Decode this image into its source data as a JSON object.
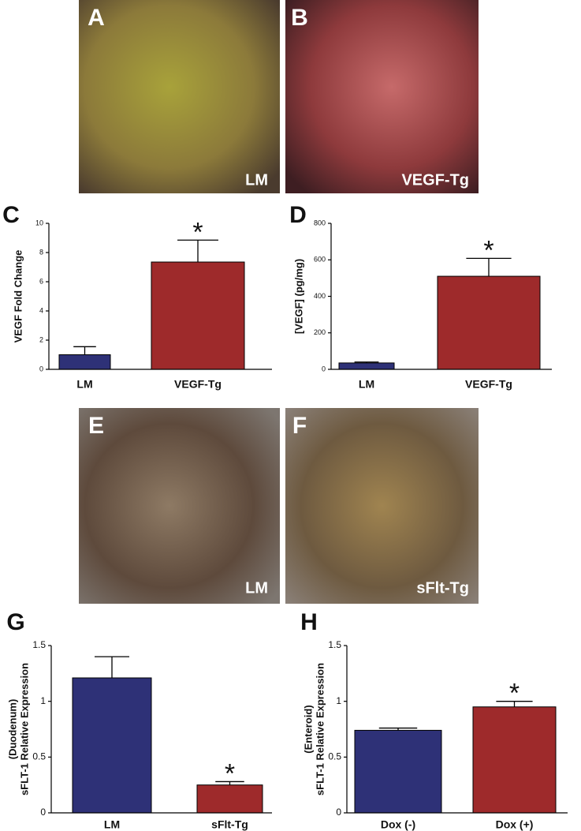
{
  "panels": [
    {
      "letter": "A",
      "label": "LM"
    },
    {
      "letter": "B",
      "label": "VEGF-Tg"
    },
    {
      "letter": "E",
      "label": "LM"
    },
    {
      "letter": "F",
      "label": "sFlt-Tg"
    }
  ],
  "chart_data": [
    {
      "type": "bar",
      "panel": "C",
      "ylabel": [
        "VEGF Fold Change"
      ],
      "categories": [
        "LM",
        "VEGF-Tg"
      ],
      "values": [
        1.0,
        7.35
      ],
      "errors": [
        0.55,
        1.5
      ],
      "colors": [
        "#2e3177",
        "#9e2a2b"
      ],
      "ylim": [
        0,
        10
      ],
      "yticks": [
        0,
        2,
        4,
        6,
        8,
        10
      ],
      "annotation": "*",
      "annotation_category": 1
    },
    {
      "type": "bar",
      "panel": "D",
      "ylabel": [
        "[VEGF] (pg/mg)"
      ],
      "categories": [
        "LM",
        "VEGF-Tg"
      ],
      "values": [
        35,
        510
      ],
      "errors": [
        5,
        98
      ],
      "colors": [
        "#2e3177",
        "#9e2a2b"
      ],
      "ylim": [
        0,
        800
      ],
      "yticks": [
        0,
        200,
        400,
        600,
        800
      ],
      "annotation": "*",
      "annotation_category": 1
    },
    {
      "type": "bar",
      "panel": "G",
      "ylabel": [
        "(Duodenum)",
        "sFLT-1 Relative Expression"
      ],
      "categories": [
        "LM",
        "sFlt-Tg"
      ],
      "values": [
        1.21,
        0.25
      ],
      "errors": [
        0.19,
        0.03
      ],
      "colors": [
        "#2e3177",
        "#9e2a2b"
      ],
      "ylim": [
        0,
        1.5
      ],
      "yticks": [
        0,
        0.5,
        1,
        1.5
      ],
      "annotation": "*",
      "annotation_category": 1
    },
    {
      "type": "bar",
      "panel": "H",
      "ylabel": [
        "(Enteroid)",
        "sFLT-1 Relative Expression"
      ],
      "categories": [
        "Dox (-)",
        "Dox (+)"
      ],
      "values": [
        0.74,
        0.95
      ],
      "errors": [
        0.02,
        0.05
      ],
      "colors": [
        "#2e3177",
        "#9e2a2b"
      ],
      "ylim": [
        0,
        1.5
      ],
      "yticks": [
        0,
        0.5,
        1,
        1.5
      ],
      "annotation": "*",
      "annotation_category": 1
    }
  ]
}
